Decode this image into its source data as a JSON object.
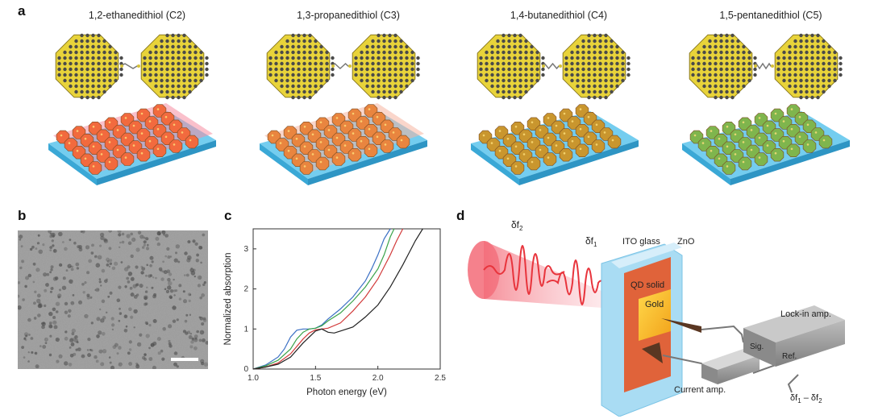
{
  "panel_a": {
    "letter": "a",
    "titles": [
      "1,2-ethanedithiol (C2)",
      "1,3-propanedithiol (C3)",
      "1,4-butanedithiol (C4)",
      "1,5-pentanedithiol (C5)"
    ],
    "film_colors": [
      "#f26a3e",
      "#e9853f",
      "#c9962e",
      "#7fb54d"
    ],
    "glow_colors": [
      "#f58ca0",
      "#f6b4a0",
      "#e8c7a0",
      "#b6dca0"
    ],
    "substrate_color": "#5cc4ec",
    "nanocrystal_color": "#e8d33a"
  },
  "panel_b": {
    "letter": "b"
  },
  "panel_c": {
    "letter": "c"
  },
  "panel_d": {
    "letter": "d",
    "df2": "δf",
    "df2_sub": "2",
    "df1": "δf",
    "df1_sub": "1",
    "ito_glass": "ITO glass",
    "zno": "ZnO",
    "qd_solid": "QD solid",
    "gold": "Gold",
    "lockin": "Lock-in amp.",
    "sig": "Sig.",
    "ref": "Ref.",
    "current_amp": "Current amp.",
    "diff_a": "δf",
    "diff_a_sub": "1",
    "diff_mid": " – δf",
    "diff_b_sub": "2"
  },
  "chart_data": {
    "type": "line",
    "xlabel": "Photon energy (eV)",
    "ylabel": "Normalized absorption",
    "xlim": [
      1.0,
      2.5
    ],
    "ylim": [
      0,
      3.5
    ],
    "xticks": [
      1.0,
      1.5,
      2.0,
      2.5
    ],
    "xtick_labels": [
      "1.0",
      "1.5",
      "2.0",
      "2.5"
    ],
    "yticks": [
      0,
      1,
      2,
      3
    ],
    "ytick_labels": [
      "0",
      "1",
      "2",
      "3"
    ],
    "grid": false,
    "series": [
      {
        "color": "#3a6fc4",
        "x": [
          1.0,
          1.1,
          1.2,
          1.25,
          1.3,
          1.35,
          1.4,
          1.45,
          1.5,
          1.55,
          1.6,
          1.7,
          1.8,
          1.9,
          1.95,
          2.0,
          2.05,
          2.1
        ],
        "y": [
          0.0,
          0.1,
          0.3,
          0.5,
          0.8,
          0.97,
          1.0,
          1.0,
          1.02,
          1.1,
          1.25,
          1.5,
          1.8,
          2.2,
          2.5,
          2.85,
          3.25,
          3.5
        ]
      },
      {
        "color": "#3aa34a",
        "x": [
          1.0,
          1.1,
          1.2,
          1.3,
          1.35,
          1.4,
          1.45,
          1.5,
          1.55,
          1.6,
          1.7,
          1.8,
          1.9,
          2.0,
          2.05,
          2.1,
          2.13
        ],
        "y": [
          0.0,
          0.08,
          0.22,
          0.5,
          0.75,
          0.92,
          1.0,
          1.02,
          1.08,
          1.2,
          1.4,
          1.7,
          2.05,
          2.5,
          2.85,
          3.3,
          3.5
        ]
      },
      {
        "color": "#d23a3a",
        "x": [
          1.0,
          1.1,
          1.2,
          1.3,
          1.4,
          1.45,
          1.5,
          1.55,
          1.6,
          1.7,
          1.8,
          1.9,
          2.0,
          2.1,
          2.15,
          2.2
        ],
        "y": [
          0.0,
          0.05,
          0.15,
          0.38,
          0.75,
          0.9,
          0.98,
          1.0,
          1.02,
          1.15,
          1.45,
          1.8,
          2.25,
          2.85,
          3.2,
          3.5
        ]
      },
      {
        "color": "#222222",
        "x": [
          1.0,
          1.1,
          1.2,
          1.3,
          1.4,
          1.5,
          1.55,
          1.6,
          1.65,
          1.7,
          1.8,
          1.9,
          2.0,
          2.1,
          2.2,
          2.3,
          2.36
        ],
        "y": [
          0.0,
          0.05,
          0.12,
          0.3,
          0.65,
          0.95,
          1.0,
          0.92,
          0.9,
          0.95,
          1.05,
          1.3,
          1.6,
          2.05,
          2.6,
          3.2,
          3.5
        ]
      }
    ]
  }
}
